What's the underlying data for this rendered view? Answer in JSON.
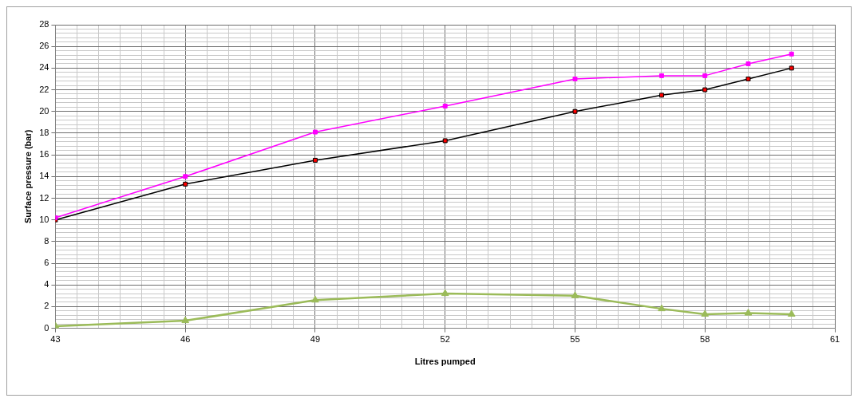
{
  "chart_data": {
    "type": "line",
    "xlabel": "Litres pumped",
    "ylabel": "Surface pressure (bar)",
    "x": [
      43,
      46,
      49,
      52,
      55,
      57,
      58,
      59,
      60
    ],
    "series": [
      {
        "color": "#ff00ff",
        "marker": "square",
        "values": [
          10.2,
          14.0,
          18.1,
          20.5,
          23.0,
          23.3,
          23.3,
          24.4,
          25.3
        ]
      },
      {
        "color": "#000000",
        "colors": [
          "#ff0000",
          "#ff0000",
          "#ff0000",
          "#ff0000",
          "#ff0000",
          "#ff0000",
          "#ff0000",
          "#ff0000",
          "#ff0000"
        ],
        "marker": "square",
        "values": [
          10.0,
          13.3,
          15.5,
          17.3,
          20.0,
          21.5,
          22.0,
          23.0,
          24.0
        ]
      },
      {
        "color": "#9bbb59",
        "marker": "triangle",
        "values": [
          0.2,
          0.7,
          2.6,
          3.2,
          3.0,
          1.8,
          1.3,
          1.4,
          1.3
        ]
      }
    ],
    "xlim": [
      43,
      61
    ],
    "xticks": [
      43,
      {
        "value": 43.5,
        "label": null
      },
      {
        "value": 44,
        "label": null
      },
      {
        "value": 44.5,
        "label": null
      },
      {
        "value": 45,
        "label": null
      },
      {
        "value": 45.5,
        "label": null
      },
      46,
      {
        "value": 46.5,
        "label": null
      },
      {
        "value": 47,
        "label": null
      },
      {
        "value": 47.5,
        "label": null
      },
      {
        "value": 48,
        "label": null
      },
      {
        "value": 48.5,
        "label": null
      },
      49,
      {
        "value": 49.5,
        "label": null
      },
      {
        "value": 50,
        "label": null
      },
      {
        "value": 50.5,
        "label": null
      },
      {
        "value": 51,
        "label": null
      },
      {
        "value": 51.5,
        "label": null
      },
      52,
      {
        "value": 52.5,
        "label": null
      },
      {
        "value": 53,
        "label": null
      },
      {
        "value": 53.5,
        "label": null
      },
      {
        "value": 54,
        "label": null
      },
      {
        "value": 54.5,
        "label": null
      },
      55,
      {
        "value": 55.5,
        "label": null
      },
      {
        "value": 56,
        "label": null
      },
      {
        "value": 56.5,
        "label": null
      },
      {
        "value": 57,
        "label": null
      },
      {
        "value": 57.5,
        "label": null
      },
      58,
      {
        "value": 58.5,
        "label": null
      },
      {
        "value": 59,
        "label": null
      },
      {
        "value": 59.5,
        "label": null
      },
      {
        "value": 60,
        "label": null
      },
      {
        "value": 60.5,
        "label": null
      },
      61
    ],
    "ylim": [
      0,
      28
    ],
    "yticks": [
      0,
      {
        "value": 0.4,
        "label": null
      },
      {
        "value": 0.8,
        "label": null
      },
      {
        "value": 1.2,
        "label": null
      },
      {
        "value": 1.6,
        "label": null
      },
      2,
      {
        "value": 2.4,
        "label": null
      },
      {
        "value": 2.8,
        "label": null
      },
      {
        "value": 3.2,
        "label": null
      },
      {
        "value": 3.6,
        "label": null
      },
      4,
      {
        "value": 4.4,
        "label": null
      },
      {
        "value": 4.8,
        "label": null
      },
      {
        "value": 5.2,
        "label": null
      },
      {
        "value": 5.6,
        "label": null
      },
      6,
      {
        "value": 6.4,
        "label": null
      },
      {
        "value": 6.8,
        "label": null
      },
      {
        "value": 7.2,
        "label": null
      },
      {
        "value": 7.6,
        "label": null
      },
      8,
      {
        "value": 8.4,
        "label": null
      },
      {
        "value": 8.8,
        "label": null
      },
      {
        "value": 9.2,
        "label": null
      },
      {
        "value": 9.6,
        "label": null
      },
      10,
      {
        "value": 10.4,
        "label": null
      },
      {
        "value": 10.8,
        "label": null
      },
      {
        "value": 11.2,
        "label": null
      },
      {
        "value": 11.6,
        "label": null
      },
      12,
      {
        "value": 12.4,
        "label": null
      },
      {
        "value": 12.8,
        "label": null
      },
      {
        "value": 13.2,
        "label": null
      },
      {
        "value": 13.6,
        "label": null
      },
      14,
      {
        "value": 14.4,
        "label": null
      },
      {
        "value": 14.8,
        "label": null
      },
      {
        "value": 15.2,
        "label": null
      },
      {
        "value": 15.6,
        "label": null
      },
      16,
      {
        "value": 16.4,
        "label": null
      },
      {
        "value": 16.8,
        "label": null
      },
      {
        "value": 17.2,
        "label": null
      },
      {
        "value": 17.6,
        "label": null
      },
      18,
      {
        "value": 18.4,
        "label": null
      },
      {
        "value": 18.8,
        "label": null
      },
      {
        "value": 19.2,
        "label": null
      },
      {
        "value": 19.6,
        "label": null
      },
      20,
      {
        "value": 20.4,
        "label": null
      },
      {
        "value": 20.8,
        "label": null
      },
      {
        "value": 21.2,
        "label": null
      },
      {
        "value": 21.6,
        "label": null
      },
      22,
      {
        "value": 22.4,
        "label": null
      },
      {
        "value": 22.8,
        "label": null
      },
      {
        "value": 23.2,
        "label": null
      },
      {
        "value": 23.6,
        "label": null
      },
      24,
      {
        "value": 24.4,
        "label": null
      },
      {
        "value": 24.8,
        "label": null
      },
      {
        "value": 25.2,
        "label": null
      },
      {
        "value": 25.6,
        "label": null
      },
      26,
      {
        "value": 26.4,
        "label": null
      },
      {
        "value": 26.8,
        "label": null
      },
      {
        "value": 27.2,
        "label": null
      },
      {
        "value": 27.6,
        "label": null
      },
      28
    ],
    "grid": true,
    "legend": false,
    "line_style": "solid"
  }
}
